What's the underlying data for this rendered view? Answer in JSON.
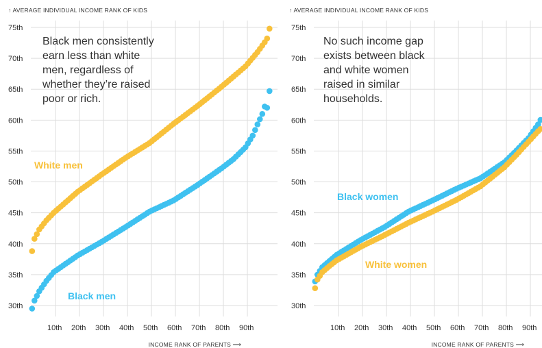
{
  "chart_data": [
    {
      "type": "scatter",
      "ylabel": "↑ AVERAGE INDIVIDUAL INCOME RANK OF KIDS",
      "xlabel": "INCOME RANK OF PARENTS ⟶",
      "x_ticks": [
        "10th",
        "20th",
        "30th",
        "40th",
        "50th",
        "60th",
        "70th",
        "80th",
        "90th"
      ],
      "y_ticks": [
        "30th",
        "35th",
        "40th",
        "45th",
        "50th",
        "55th",
        "60th",
        "65th",
        "70th",
        "75th"
      ],
      "xlim": [
        1,
        100
      ],
      "ylim": [
        29,
        75.5
      ],
      "annotation": [
        "Black men consistently",
        "earn less than white",
        "men, regardless of",
        "whether they’re raised",
        "poor or rich."
      ],
      "series": [
        {
          "name": "White men",
          "color": "#f8c13b",
          "anchors_x": [
            1,
            2,
            4,
            7,
            10,
            20,
            30,
            40,
            50,
            60,
            70,
            80,
            90,
            95,
            98,
            99,
            100
          ],
          "anchors_y": [
            38.8,
            40.8,
            42.3,
            43.8,
            45.0,
            48.4,
            51.2,
            53.9,
            56.3,
            59.4,
            62.3,
            65.4,
            68.7,
            71.0,
            72.6,
            73.2,
            74.8
          ]
        },
        {
          "name": "Black men",
          "color": "#3fc1f0",
          "anchors_x": [
            1,
            2,
            4,
            7,
            10,
            20,
            30,
            40,
            50,
            60,
            70,
            80,
            85,
            90,
            93,
            95,
            97,
            98,
            99,
            100
          ],
          "anchors_y": [
            29.5,
            30.8,
            32.3,
            34.0,
            35.4,
            38.1,
            40.3,
            42.7,
            45.2,
            47.0,
            49.5,
            52.2,
            53.7,
            55.6,
            57.5,
            59.3,
            61.0,
            62.2,
            62.0,
            64.7
          ]
        }
      ]
    },
    {
      "type": "scatter",
      "ylabel": "↑ AVERAGE INDIVIDUAL INCOME RANK OF KIDS",
      "xlabel": "INCOME RANK OF PARENTS ⟶",
      "x_ticks": [
        "10th",
        "20th",
        "30th",
        "40th",
        "50th",
        "60th",
        "70th",
        "80th",
        "90th"
      ],
      "y_ticks": [
        "30th",
        "35th",
        "40th",
        "45th",
        "50th",
        "55th",
        "60th",
        "65th",
        "70th",
        "75th"
      ],
      "xlim": [
        1,
        100
      ],
      "ylim": [
        29,
        75.5
      ],
      "annotation": [
        "No such income gap",
        "exists between black",
        "and white women",
        "raised in similar",
        "households."
      ],
      "series": [
        {
          "name": "Black women",
          "color": "#3fc1f0",
          "anchors_x": [
            1,
            2,
            4,
            7,
            10,
            20,
            30,
            40,
            50,
            60,
            70,
            80,
            85,
            90,
            94,
            97,
            98,
            99,
            100
          ],
          "anchors_y": [
            33.9,
            35.0,
            36.2,
            37.2,
            38.2,
            40.6,
            42.7,
            45.2,
            47.0,
            48.9,
            50.6,
            53.2,
            55.1,
            57.1,
            59.3,
            61.5,
            62.0,
            61.9,
            63.4
          ]
        },
        {
          "name": "White women",
          "color": "#f8c13b",
          "anchors_x": [
            1,
            2,
            4,
            7,
            10,
            20,
            30,
            40,
            50,
            60,
            70,
            80,
            85,
            90,
            94,
            97,
            98,
            99,
            100
          ],
          "anchors_y": [
            32.8,
            34.2,
            35.4,
            36.4,
            37.3,
            39.5,
            41.4,
            43.4,
            45.2,
            47.1,
            49.3,
            52.4,
            54.4,
            56.5,
            58.2,
            59.3,
            59.9,
            60.4,
            60.8
          ]
        }
      ]
    }
  ]
}
